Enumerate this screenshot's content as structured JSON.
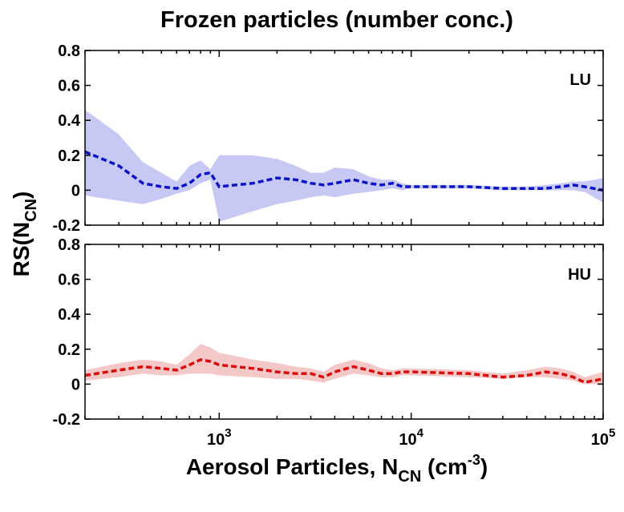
{
  "chart_data": [
    {
      "type": "line",
      "title": "Frozen particles (number conc.)",
      "panel_label": "LU",
      "xlabel": "Aerosol Particles, N_CN (cm^-3)",
      "ylabel": "RS(N_CN)",
      "xscale": "log",
      "xlim": [
        200,
        100000
      ],
      "ylim": [
        -0.2,
        0.8
      ],
      "yticks": [
        "-0.2",
        "0",
        "0.2",
        "0.4",
        "0.6",
        "0.8"
      ],
      "xticks": [
        1000,
        10000,
        100000
      ],
      "grid": false,
      "line_color": "#0a14c8",
      "band_color": "#c8c8f5",
      "series": [
        {
          "x": [
            200,
            300,
            400,
            500,
            600,
            700,
            800,
            900,
            1000,
            1500,
            2000,
            2500,
            3000,
            3500,
            4000,
            5000,
            6000,
            7000,
            8000,
            9000,
            10000,
            20000,
            30000,
            40000,
            50000,
            60000,
            70000,
            80000,
            100000
          ],
          "y": [
            0.22,
            0.14,
            0.04,
            0.02,
            0.01,
            0.04,
            0.09,
            0.1,
            0.02,
            0.04,
            0.07,
            0.06,
            0.04,
            0.03,
            0.04,
            0.06,
            0.04,
            0.03,
            0.04,
            0.02,
            0.02,
            0.02,
            0.01,
            0.01,
            0.01,
            0.02,
            0.03,
            0.02,
            0.0
          ],
          "lower": [
            -0.03,
            -0.06,
            -0.08,
            -0.05,
            -0.02,
            0.0,
            0.04,
            0.06,
            -0.18,
            -0.12,
            -0.08,
            -0.06,
            -0.04,
            -0.03,
            -0.04,
            -0.02,
            -0.01,
            0.0,
            0.01,
            0.0,
            0.01,
            0.01,
            0.0,
            0.0,
            0.0,
            0.0,
            0.0,
            -0.01,
            -0.07
          ],
          "upper": [
            0.46,
            0.32,
            0.16,
            0.1,
            0.05,
            0.14,
            0.17,
            0.12,
            0.2,
            0.2,
            0.18,
            0.14,
            0.1,
            0.1,
            0.13,
            0.12,
            0.08,
            0.06,
            0.06,
            0.04,
            0.03,
            0.03,
            0.02,
            0.02,
            0.03,
            0.04,
            0.05,
            0.05,
            0.07
          ]
        }
      ]
    },
    {
      "type": "line",
      "panel_label": "HU",
      "xscale": "log",
      "xlim": [
        200,
        100000
      ],
      "ylim": [
        -0.2,
        0.8
      ],
      "yticks": [
        "-0.2",
        "0",
        "0.2",
        "0.4",
        "0.6",
        "0.8"
      ],
      "xticks": [
        1000,
        10000,
        100000
      ],
      "xtick_labels": [
        {
          "base": "10",
          "exp": "3"
        },
        {
          "base": "10",
          "exp": "4"
        },
        {
          "base": "10",
          "exp": "5"
        }
      ],
      "grid": false,
      "line_color": "#dc0a0a",
      "band_color": "#f5c8c8",
      "series": [
        {
          "x": [
            200,
            300,
            400,
            500,
            600,
            700,
            800,
            900,
            1000,
            1500,
            2000,
            2500,
            3000,
            3500,
            4000,
            5000,
            6000,
            7000,
            8000,
            9000,
            10000,
            20000,
            30000,
            40000,
            50000,
            60000,
            70000,
            80000,
            100000
          ],
          "y": [
            0.05,
            0.08,
            0.1,
            0.09,
            0.08,
            0.11,
            0.14,
            0.13,
            0.11,
            0.09,
            0.07,
            0.06,
            0.06,
            0.04,
            0.07,
            0.1,
            0.08,
            0.06,
            0.06,
            0.07,
            0.07,
            0.06,
            0.04,
            0.05,
            0.07,
            0.06,
            0.04,
            0.01,
            0.03
          ],
          "lower": [
            0.02,
            0.04,
            0.06,
            0.05,
            0.05,
            0.06,
            0.06,
            0.06,
            0.05,
            0.04,
            0.03,
            0.03,
            0.02,
            0.01,
            0.03,
            0.06,
            0.05,
            0.04,
            0.04,
            0.05,
            0.05,
            0.04,
            0.03,
            0.04,
            0.04,
            0.03,
            0.02,
            0.0,
            0.0
          ],
          "upper": [
            0.08,
            0.12,
            0.14,
            0.13,
            0.11,
            0.17,
            0.23,
            0.21,
            0.18,
            0.14,
            0.12,
            0.1,
            0.09,
            0.07,
            0.11,
            0.14,
            0.12,
            0.09,
            0.08,
            0.09,
            0.09,
            0.08,
            0.06,
            0.08,
            0.1,
            0.09,
            0.07,
            0.04,
            0.07
          ]
        }
      ]
    }
  ],
  "labels": {
    "xlabel_main": "Aerosol Particles, N",
    "xlabel_sub": "CN",
    "xlabel_tail": " (cm",
    "xlabel_exp": "-3",
    "xlabel_close": ")",
    "ylabel_main": "RS(N",
    "ylabel_sub": "CN",
    "ylabel_close": ")"
  }
}
